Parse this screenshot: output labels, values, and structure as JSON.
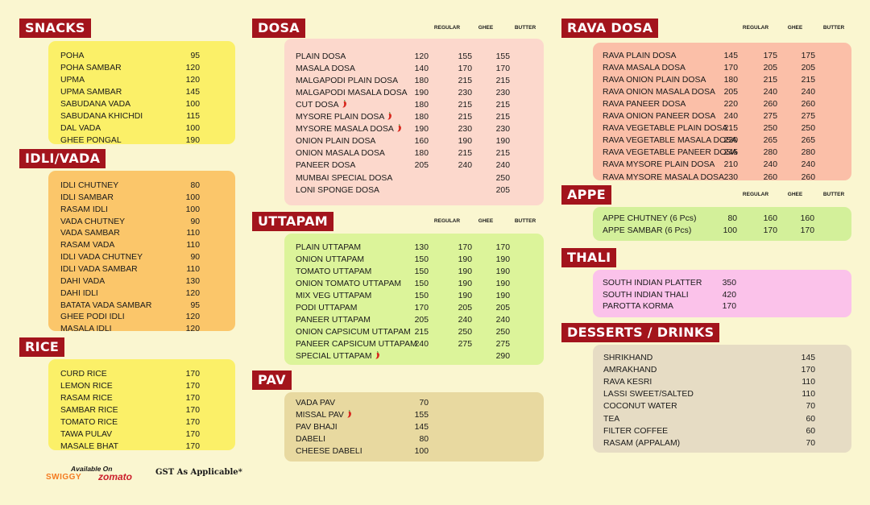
{
  "sections": {
    "snacks": {
      "title": "SNACKS",
      "items": [
        {
          "name": "POHA",
          "price": "95"
        },
        {
          "name": "POHA SAMBAR",
          "price": "120"
        },
        {
          "name": "UPMA",
          "price": "120"
        },
        {
          "name": "UPMA SAMBAR",
          "price": "145"
        },
        {
          "name": "SABUDANA VADA",
          "price": "100"
        },
        {
          "name": "SABUDANA KHICHDI",
          "price": "115"
        },
        {
          "name": "DAL VADA",
          "price": "100"
        },
        {
          "name": "GHEE PONGAL",
          "price": "190"
        }
      ]
    },
    "idli": {
      "title": "IDLI/VADA",
      "items": [
        {
          "name": "IDLI CHUTNEY",
          "price": "80"
        },
        {
          "name": "IDLI SAMBAR",
          "price": "100"
        },
        {
          "name": "RASAM IDLI",
          "price": "100"
        },
        {
          "name": "VADA CHUTNEY",
          "price": "90"
        },
        {
          "name": "VADA SAMBAR",
          "price": "110"
        },
        {
          "name": "RASAM VADA",
          "price": "110"
        },
        {
          "name": "IDLI VADA CHUTNEY",
          "price": "90"
        },
        {
          "name": "IDLI VADA SAMBAR",
          "price": "110"
        },
        {
          "name": "DAHI VADA",
          "price": "130"
        },
        {
          "name": "DAHI IDLI",
          "price": "120"
        },
        {
          "name": "BATATA VADA SAMBAR",
          "price": "95"
        },
        {
          "name": "GHEE PODI IDLI",
          "price": "120"
        },
        {
          "name": "MASALA IDLI",
          "price": "120"
        }
      ]
    },
    "rice": {
      "title": "RICE",
      "items": [
        {
          "name": "CURD RICE",
          "price": "170"
        },
        {
          "name": "LEMON RICE",
          "price": "170"
        },
        {
          "name": "RASAM RICE",
          "price": "170"
        },
        {
          "name": "SAMBAR RICE",
          "price": "170"
        },
        {
          "name": "TOMATO RICE",
          "price": "170"
        },
        {
          "name": "TAWA PULAV",
          "price": "170"
        },
        {
          "name": "MASALE BHAT",
          "price": "170"
        }
      ]
    },
    "dosa": {
      "title": "DOSA",
      "headers": [
        "REGULAR",
        "GHEE",
        "BUTTER"
      ],
      "items": [
        {
          "name": "PLAIN DOSA",
          "prices": [
            "120",
            "155",
            "155"
          ]
        },
        {
          "name": "MASALA DOSA",
          "prices": [
            "140",
            "170",
            "170"
          ]
        },
        {
          "name": "MALGAPODI PLAIN DOSA",
          "prices": [
            "180",
            "215",
            "215"
          ]
        },
        {
          "name": "MALGAPODI MASALA DOSA",
          "prices": [
            "190",
            "230",
            "230"
          ]
        },
        {
          "name": "CUT DOSA",
          "prices": [
            "180",
            "215",
            "215"
          ],
          "spicy": true
        },
        {
          "name": "MYSORE PLAIN DOSA",
          "prices": [
            "180",
            "215",
            "215"
          ],
          "spicy": true
        },
        {
          "name": "MYSORE MASALA DOSA",
          "prices": [
            "190",
            "230",
            "230"
          ],
          "spicy": true
        },
        {
          "name": "ONION PLAIN DOSA",
          "prices": [
            "160",
            "190",
            "190"
          ]
        },
        {
          "name": "ONION MASALA DOSA",
          "prices": [
            "180",
            "215",
            "215"
          ]
        },
        {
          "name": "PANEER DOSA",
          "prices": [
            "205",
            "240",
            "240"
          ]
        },
        {
          "name": "MUMBAI SPECIAL DOSA",
          "prices": [
            "",
            "",
            "250"
          ]
        },
        {
          "name": "LONI SPONGE DOSA",
          "prices": [
            "",
            "",
            "205"
          ]
        }
      ]
    },
    "uttapam": {
      "title": "UTTAPAM",
      "headers": [
        "REGULAR",
        "GHEE",
        "BUTTER"
      ],
      "items": [
        {
          "name": "PLAIN UTTAPAM",
          "prices": [
            "130",
            "170",
            "170"
          ]
        },
        {
          "name": "ONION UTTAPAM",
          "prices": [
            "150",
            "190",
            "190"
          ]
        },
        {
          "name": "TOMATO UTTAPAM",
          "prices": [
            "150",
            "190",
            "190"
          ]
        },
        {
          "name": "ONION TOMATO UTTAPAM",
          "prices": [
            "150",
            "190",
            "190"
          ]
        },
        {
          "name": "MIX VEG UTTAPAM",
          "prices": [
            "150",
            "190",
            "190"
          ]
        },
        {
          "name": "PODI UTTAPAM",
          "prices": [
            "170",
            "205",
            "205"
          ]
        },
        {
          "name": "PANEER UTTAPAM",
          "prices": [
            "205",
            "240",
            "240"
          ]
        },
        {
          "name": "ONION CAPSICUM UTTAPAM",
          "prices": [
            "215",
            "250",
            "250"
          ]
        },
        {
          "name": "PANEER CAPSICUM UTTAPAM",
          "prices": [
            "240",
            "275",
            "275"
          ]
        },
        {
          "name": "SPECIAL UTTAPAM",
          "prices": [
            "",
            "",
            "290"
          ],
          "spicy": true
        }
      ]
    },
    "pav": {
      "title": "PAV",
      "items": [
        {
          "name": "VADA PAV",
          "price": "70"
        },
        {
          "name": "MISSAL PAV",
          "price": "155",
          "spicy": true
        },
        {
          "name": "PAV BHAJI",
          "price": "145"
        },
        {
          "name": "DABELI",
          "price": "80"
        },
        {
          "name": "CHEESE DABELI",
          "price": "100"
        }
      ]
    },
    "rava": {
      "title": "RAVA DOSA",
      "headers": [
        "REGULAR",
        "GHEE",
        "BUTTER"
      ],
      "items": [
        {
          "name": "RAVA PLAIN DOSA",
          "prices": [
            "145",
            "175",
            "175"
          ]
        },
        {
          "name": "RAVA MASALA DOSA",
          "prices": [
            "170",
            "205",
            "205"
          ]
        },
        {
          "name": "RAVA ONION PLAIN DOSA",
          "prices": [
            "180",
            "215",
            "215"
          ]
        },
        {
          "name": "RAVA ONION MASALA DOSA",
          "prices": [
            "205",
            "240",
            "240"
          ]
        },
        {
          "name": "RAVA PANEER DOSA",
          "prices": [
            "220",
            "260",
            "260"
          ]
        },
        {
          "name": "RAVA ONION PANEER DOSA",
          "prices": [
            "240",
            "275",
            "275"
          ]
        },
        {
          "name": "RAVA VEGETABLE PLAIN DOSA",
          "prices": [
            "215",
            "250",
            "250"
          ]
        },
        {
          "name": "RAVA VEGETABLE MASALA DOSA",
          "prices": [
            "230",
            "265",
            "265"
          ]
        },
        {
          "name": "RAVA VEGETABLE PANEER DOSA",
          "prices": [
            "245",
            "280",
            "280"
          ]
        },
        {
          "name": "RAVA MYSORE PLAIN DOSA",
          "prices": [
            "210",
            "240",
            "240"
          ]
        },
        {
          "name": "RAVA MYSORE MASALA DOSA",
          "prices": [
            "230",
            "260",
            "260"
          ]
        }
      ]
    },
    "appe": {
      "title": "APPE",
      "headers": [
        "REGULAR",
        "GHEE",
        "BUTTER"
      ],
      "items": [
        {
          "name": "APPE CHUTNEY (6 Pcs)",
          "prices": [
            "80",
            "160",
            "160"
          ]
        },
        {
          "name": "APPE SAMBAR (6 Pcs)",
          "prices": [
            "100",
            "170",
            "170"
          ]
        }
      ]
    },
    "thali": {
      "title": "THALI",
      "items": [
        {
          "name": "SOUTH INDIAN PLATTER",
          "price": "350"
        },
        {
          "name": "SOUTH INDIAN THALI",
          "price": "420"
        },
        {
          "name": "PAROTTA KORMA",
          "price": "170"
        }
      ]
    },
    "desserts": {
      "title": "DESSERTS / DRINKS",
      "items": [
        {
          "name": "SHRIKHAND",
          "price": "145"
        },
        {
          "name": "AMRAKHAND",
          "price": "170"
        },
        {
          "name": "RAVA KESRI",
          "price": "110"
        },
        {
          "name": "LASSI SWEET/SALTED",
          "price": "110"
        },
        {
          "name": "COCONUT WATER",
          "price": "70"
        },
        {
          "name": "TEA",
          "price": "60"
        },
        {
          "name": "FILTER COFFEE",
          "price": "60"
        },
        {
          "name": "RASAM (APPALAM)",
          "price": "70"
        }
      ]
    }
  },
  "footer": {
    "available_on": "Available On",
    "swiggy": "SWIGGY",
    "zomato": "zomato",
    "gst": "GST As Applicable*"
  },
  "colors": {
    "background": "#faf6d0",
    "title_bg": "#a3141c",
    "snacks_box": "#fbf068",
    "idli_box": "#fbc66a",
    "rice_box": "#fbf068",
    "dosa_box": "#fcd8cc",
    "uttapam_box": "#dcf49a",
    "pav_box": "#e8d9a0",
    "rava_box": "#fbbfa8",
    "appe_box": "#d3f09a",
    "thali_box": "#fbc2ea",
    "desserts_box": "#e6dcc4"
  }
}
